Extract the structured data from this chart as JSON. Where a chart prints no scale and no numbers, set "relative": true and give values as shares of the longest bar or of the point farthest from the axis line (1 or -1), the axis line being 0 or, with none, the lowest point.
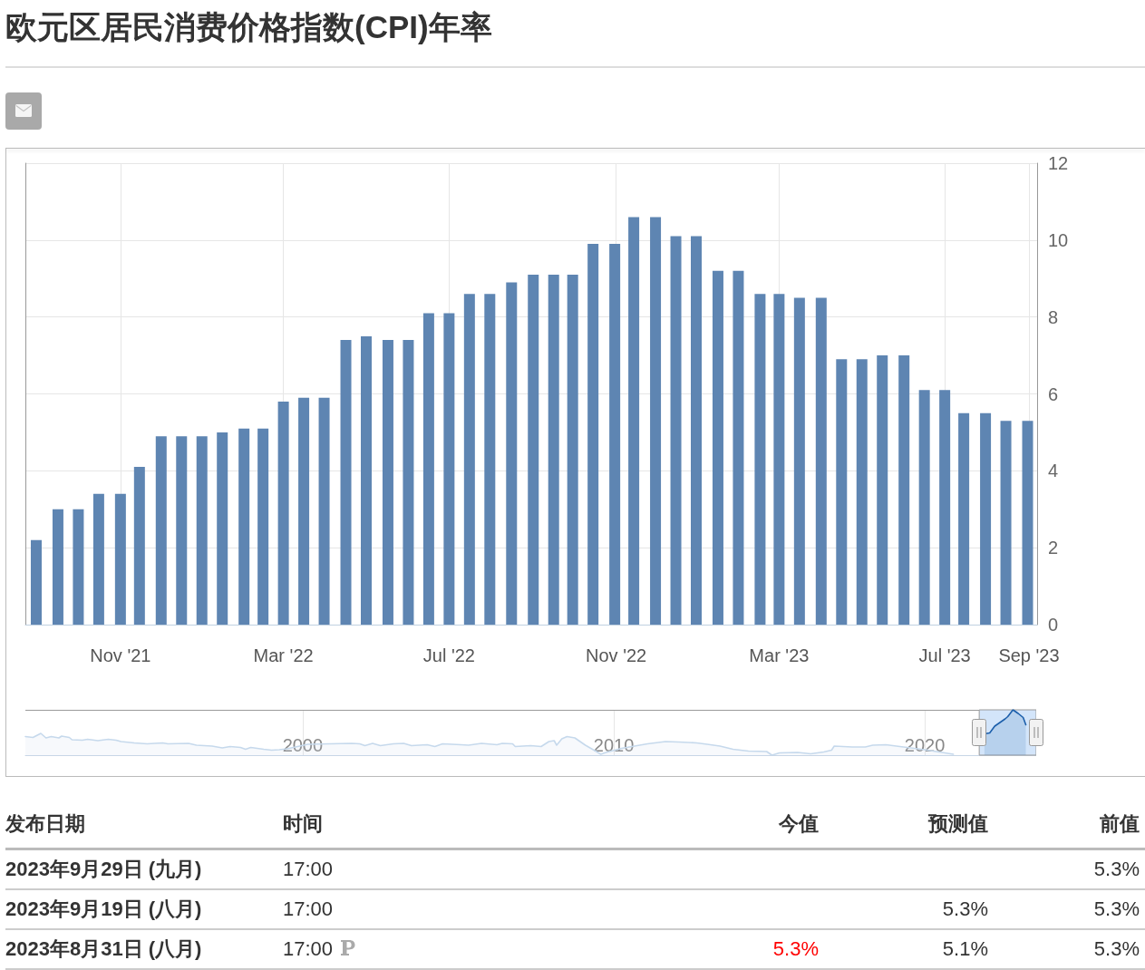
{
  "chart_data": [
    {
      "type": "bar",
      "title": "欧元区居民消费价格指数(CPI)年率",
      "color": "#5e85b2",
      "x": [
        "2021-08-31",
        "2021-09-16",
        "2021-10-01",
        "2021-10-16",
        "2021-11-01",
        "2021-11-15",
        "2021-12-01",
        "2021-12-16",
        "2021-12-31",
        "2022-01-15",
        "2022-01-31",
        "2022-02-14",
        "2022-03-01",
        "2022-03-16",
        "2022-03-31",
        "2022-04-16",
        "2022-05-01",
        "2022-05-17",
        "2022-06-01",
        "2022-06-16",
        "2022-07-01",
        "2022-07-16",
        "2022-07-31",
        "2022-08-16",
        "2022-09-01",
        "2022-09-16",
        "2022-09-30",
        "2022-10-15",
        "2022-10-31",
        "2022-11-14",
        "2022-11-30",
        "2022-12-15",
        "2022-12-30",
        "2023-01-15",
        "2023-01-30",
        "2023-02-15",
        "2023-03-01",
        "2023-03-16",
        "2023-04-01",
        "2023-04-16",
        "2023-05-01",
        "2023-05-16",
        "2023-06-01",
        "2023-06-16",
        "2023-07-01",
        "2023-07-15",
        "2023-07-31",
        "2023-08-15",
        "2023-08-31"
      ],
      "values": [
        2.2,
        3.0,
        3.0,
        3.4,
        3.4,
        4.1,
        4.9,
        4.9,
        4.9,
        5.0,
        5.1,
        5.1,
        5.8,
        5.9,
        5.9,
        7.4,
        7.5,
        7.4,
        7.4,
        8.1,
        8.1,
        8.6,
        8.6,
        8.9,
        9.1,
        9.1,
        9.1,
        9.9,
        9.9,
        10.6,
        10.6,
        10.1,
        10.1,
        9.2,
        9.2,
        8.6,
        8.6,
        8.5,
        8.5,
        6.9,
        6.9,
        7.0,
        7.0,
        6.1,
        6.1,
        5.5,
        5.5,
        5.3,
        5.3
      ],
      "xlim": [
        "2021-08-23",
        "2023-09-07"
      ],
      "xticks": [
        {
          "value": "2021-11-01",
          "label": "Nov '21"
        },
        {
          "value": "2022-03-01",
          "label": "Mar '22"
        },
        {
          "value": "2022-07-01",
          "label": "Jul '22"
        },
        {
          "value": "2022-11-01",
          "label": "Nov '22"
        },
        {
          "value": "2023-03-01",
          "label": "Mar '23"
        },
        {
          "value": "2023-07-01",
          "label": "Jul '23"
        },
        {
          "value": "2023-09-01",
          "label": "Sep '23"
        }
      ],
      "ylim": [
        0,
        12
      ],
      "yticks": [
        0,
        2,
        4,
        6,
        8,
        10,
        12
      ],
      "grid": true
    },
    {
      "type": "area",
      "relative": true,
      "series": [
        {
          "color": "#c6d9ec",
          "x": [
            "1991-02",
            "1991-05",
            "1991-08",
            "1991-10",
            "1991-12",
            "1992-03",
            "1992-04",
            "1992-07",
            "1992-08",
            "1992-12",
            "1993-02",
            "1993-06",
            "1993-10",
            "1994-01",
            "1994-03",
            "1994-08",
            "1995-01",
            "1995-07",
            "1995-09",
            "1996-05",
            "1996-08",
            "1997-02",
            "1997-06",
            "1997-09",
            "1998-01",
            "1998-03",
            "1998-05",
            "1998-10",
            "1999-01",
            "1999-04",
            "1999-07",
            "1999-11",
            "2000-03",
            "2001-08",
            "2001-11",
            "2002-01",
            "2002-04",
            "2002-07",
            "2002-12",
            "2003-04",
            "2003-07",
            "2004-01",
            "2004-04",
            "2004-07",
            "2005-02",
            "2005-05",
            "2005-10",
            "2006-04",
            "2006-06",
            "2006-10",
            "2006-11",
            "2007-05",
            "2007-09",
            "2007-12",
            "2008-02",
            "2008-03",
            "2008-05",
            "2008-07",
            "2008-10",
            "2009-02",
            "2009-06",
            "2009-08",
            "2009-10",
            "2010-04",
            "2010-09",
            "2011-02",
            "2011-09",
            "2012-02",
            "2012-09",
            "2013-01",
            "2013-06",
            "2013-11",
            "2014-05",
            "2014-12",
            "2015-02",
            "2015-05",
            "2015-12",
            "2016-05",
            "2016-10",
            "2017-01",
            "2017-02",
            "2017-09",
            "2018-02",
            "2018-05",
            "2018-10",
            "2019-02",
            "2019-09",
            "2020-01",
            "2020-12"
          ],
          "values": [
            0.41,
            0.39,
            0.48,
            0.38,
            0.41,
            0.38,
            0.42,
            0.39,
            0.34,
            0.33,
            0.35,
            0.32,
            0.35,
            0.33,
            0.3,
            0.27,
            0.25,
            0.27,
            0.25,
            0.26,
            0.22,
            0.2,
            0.16,
            0.19,
            0.17,
            0.13,
            0.17,
            0.13,
            0.11,
            0.12,
            0.14,
            0.19,
            0.24,
            0.26,
            0.25,
            0.21,
            0.26,
            0.21,
            0.25,
            0.26,
            0.21,
            0.23,
            0.19,
            0.25,
            0.23,
            0.22,
            0.26,
            0.23,
            0.26,
            0.25,
            0.19,
            0.21,
            0.19,
            0.3,
            0.32,
            0.22,
            0.36,
            0.41,
            0.38,
            0.22,
            0.09,
            0.02,
            0.06,
            0.15,
            0.2,
            0.25,
            0.3,
            0.29,
            0.27,
            0.24,
            0.2,
            0.13,
            0.09,
            0.08,
            0,
            0.05,
            0.06,
            0.03,
            0.07,
            0.11,
            0.2,
            0.18,
            0.18,
            0.22,
            0.23,
            0.2,
            0.15,
            0.12,
            0.02
          ]
        },
        {
          "color": "#1c5fab",
          "x": [
            "2021-12",
            "2022-02",
            "2022-04",
            "2022-08",
            "2022-09",
            "2022-11",
            "2023-01",
            "2023-03",
            "2023-04"
          ],
          "values": [
            0.47,
            0.49,
            0.64,
            0.8,
            0.85,
            1,
            0.92,
            0.83,
            0.67
          ]
        }
      ],
      "xlim": [
        "1991-02",
        "2023-08"
      ],
      "xticks": [
        {
          "value": "2000",
          "label": "2000"
        },
        {
          "value": "2010",
          "label": "2010"
        },
        {
          "value": "2020",
          "label": "2020"
        }
      ],
      "grid": "x",
      "bands": [
        {
          "axis": "x",
          "from": "2021-10",
          "to": "2023-08",
          "color": "#d3e5fa"
        }
      ]
    },
    {
      "type": "other",
      "categories": [
        "发布日期",
        "时间",
        "今值",
        "预测值",
        "前值"
      ],
      "cell_labels": [
        [
          "2023年9月29日 (九月)",
          "17:00",
          null,
          null,
          "5.3%"
        ],
        [
          "2023年9月19日 (八月)",
          "17:00",
          null,
          "5.3%",
          "5.3%"
        ],
        [
          "2023年8月31日 (八月)",
          "17:00",
          "5.3%",
          "5.1%",
          "5.3%"
        ]
      ]
    }
  ]
}
